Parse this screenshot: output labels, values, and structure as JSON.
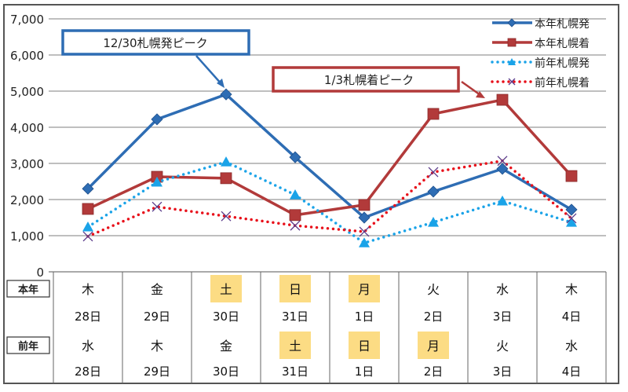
{
  "chart_data": {
    "type": "line",
    "categories": [
      "28日",
      "29日",
      "30日",
      "31日",
      "1日",
      "2日",
      "3日",
      "4日"
    ],
    "ylim": [
      0,
      7000
    ],
    "yticks": [
      "0",
      "1,000",
      "2,000",
      "3,000",
      "4,000",
      "5,000",
      "6,000",
      "7,000"
    ],
    "grid": true,
    "legend_position": "top-right",
    "series": [
      {
        "name": "本年札幌発",
        "color": "#2e6db4",
        "style": "solid",
        "marker": "diamond",
        "values": [
          2300,
          4220,
          4910,
          3170,
          1500,
          2220,
          2850,
          1720
        ]
      },
      {
        "name": "本年札幌着",
        "color": "#b23a3a",
        "style": "solid",
        "marker": "square",
        "values": [
          1740,
          2630,
          2590,
          1570,
          1850,
          4370,
          4760,
          2650
        ]
      },
      {
        "name": "前年札幌発",
        "color": "#1aa3e8",
        "style": "dotted",
        "marker": "triangle",
        "values": [
          1240,
          2480,
          3040,
          2130,
          800,
          1370,
          1960,
          1370
        ]
      },
      {
        "name": "前年札幌着",
        "color": "#e8101a",
        "style": "dotted",
        "marker": "x",
        "values": [
          980,
          1800,
          1540,
          1280,
          1110,
          2760,
          3070,
          1480
        ]
      }
    ],
    "annotations": [
      {
        "text": "12/30札幌発ピーク",
        "color": "#2e6db4"
      },
      {
        "text": "1/3札幌着ピーク",
        "color": "#b23a3a"
      }
    ],
    "table": {
      "highlight_color": "#fcdc84",
      "rows": [
        {
          "label": "本年",
          "weekdays": [
            "木",
            "金",
            "土",
            "日",
            "月",
            "火",
            "水",
            "木"
          ],
          "dates": [
            "28日",
            "29日",
            "30日",
            "31日",
            "1日",
            "2日",
            "3日",
            "4日"
          ],
          "highlight": [
            false,
            false,
            true,
            true,
            true,
            false,
            false,
            false
          ]
        },
        {
          "label": "前年",
          "weekdays": [
            "水",
            "木",
            "金",
            "土",
            "日",
            "月",
            "火",
            "水"
          ],
          "dates": [
            "28日",
            "29日",
            "30日",
            "31日",
            "1日",
            "2日",
            "3日",
            "4日"
          ],
          "highlight": [
            false,
            false,
            false,
            true,
            true,
            true,
            false,
            false
          ]
        }
      ]
    }
  }
}
